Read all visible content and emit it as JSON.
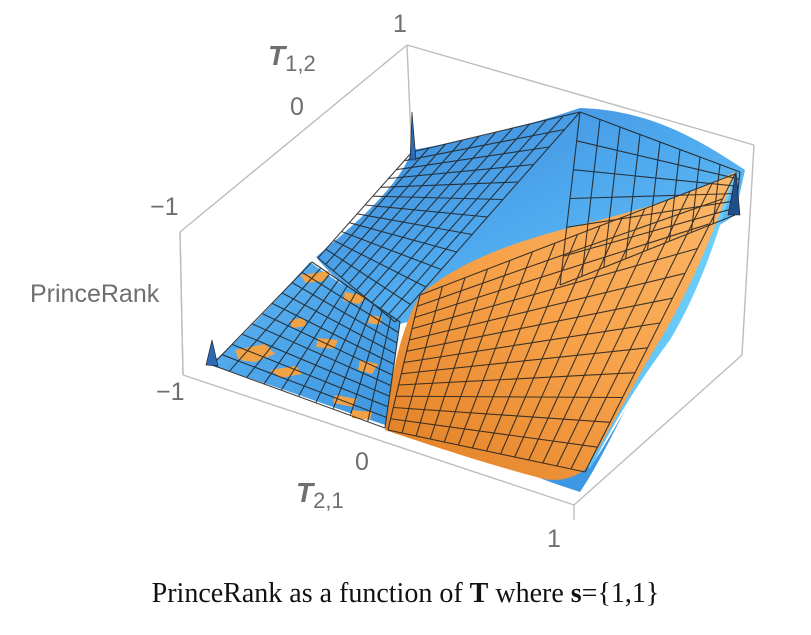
{
  "chart_data": {
    "type": "surface3d",
    "axes": {
      "x": {
        "label": "T",
        "label_sub": "2,1",
        "ticks": [
          "0",
          "1"
        ]
      },
      "y": {
        "label": "T",
        "label_sub": "1,2",
        "ticks": [
          "0",
          "1"
        ]
      },
      "z": {
        "label": "PrinceRank",
        "ticks": [
          "−1",
          "−1"
        ]
      },
      "top_tick": "1"
    },
    "series": [
      {
        "color": "#4aa6f2"
      },
      {
        "color": "#f5a040"
      }
    ],
    "colors": {
      "box": "#bdbdbd",
      "mesh": "#1a1a1a",
      "blue": "#4aa6f2",
      "blue_dark": "#2a6fb8",
      "orange": "#f5a040",
      "orange_dark": "#c8702a"
    }
  },
  "caption": {
    "prefix": "PrinceRank as a function of ",
    "bold_T": "T",
    "middle": " where ",
    "bold_s": "s",
    "suffix": "={1,1}"
  }
}
